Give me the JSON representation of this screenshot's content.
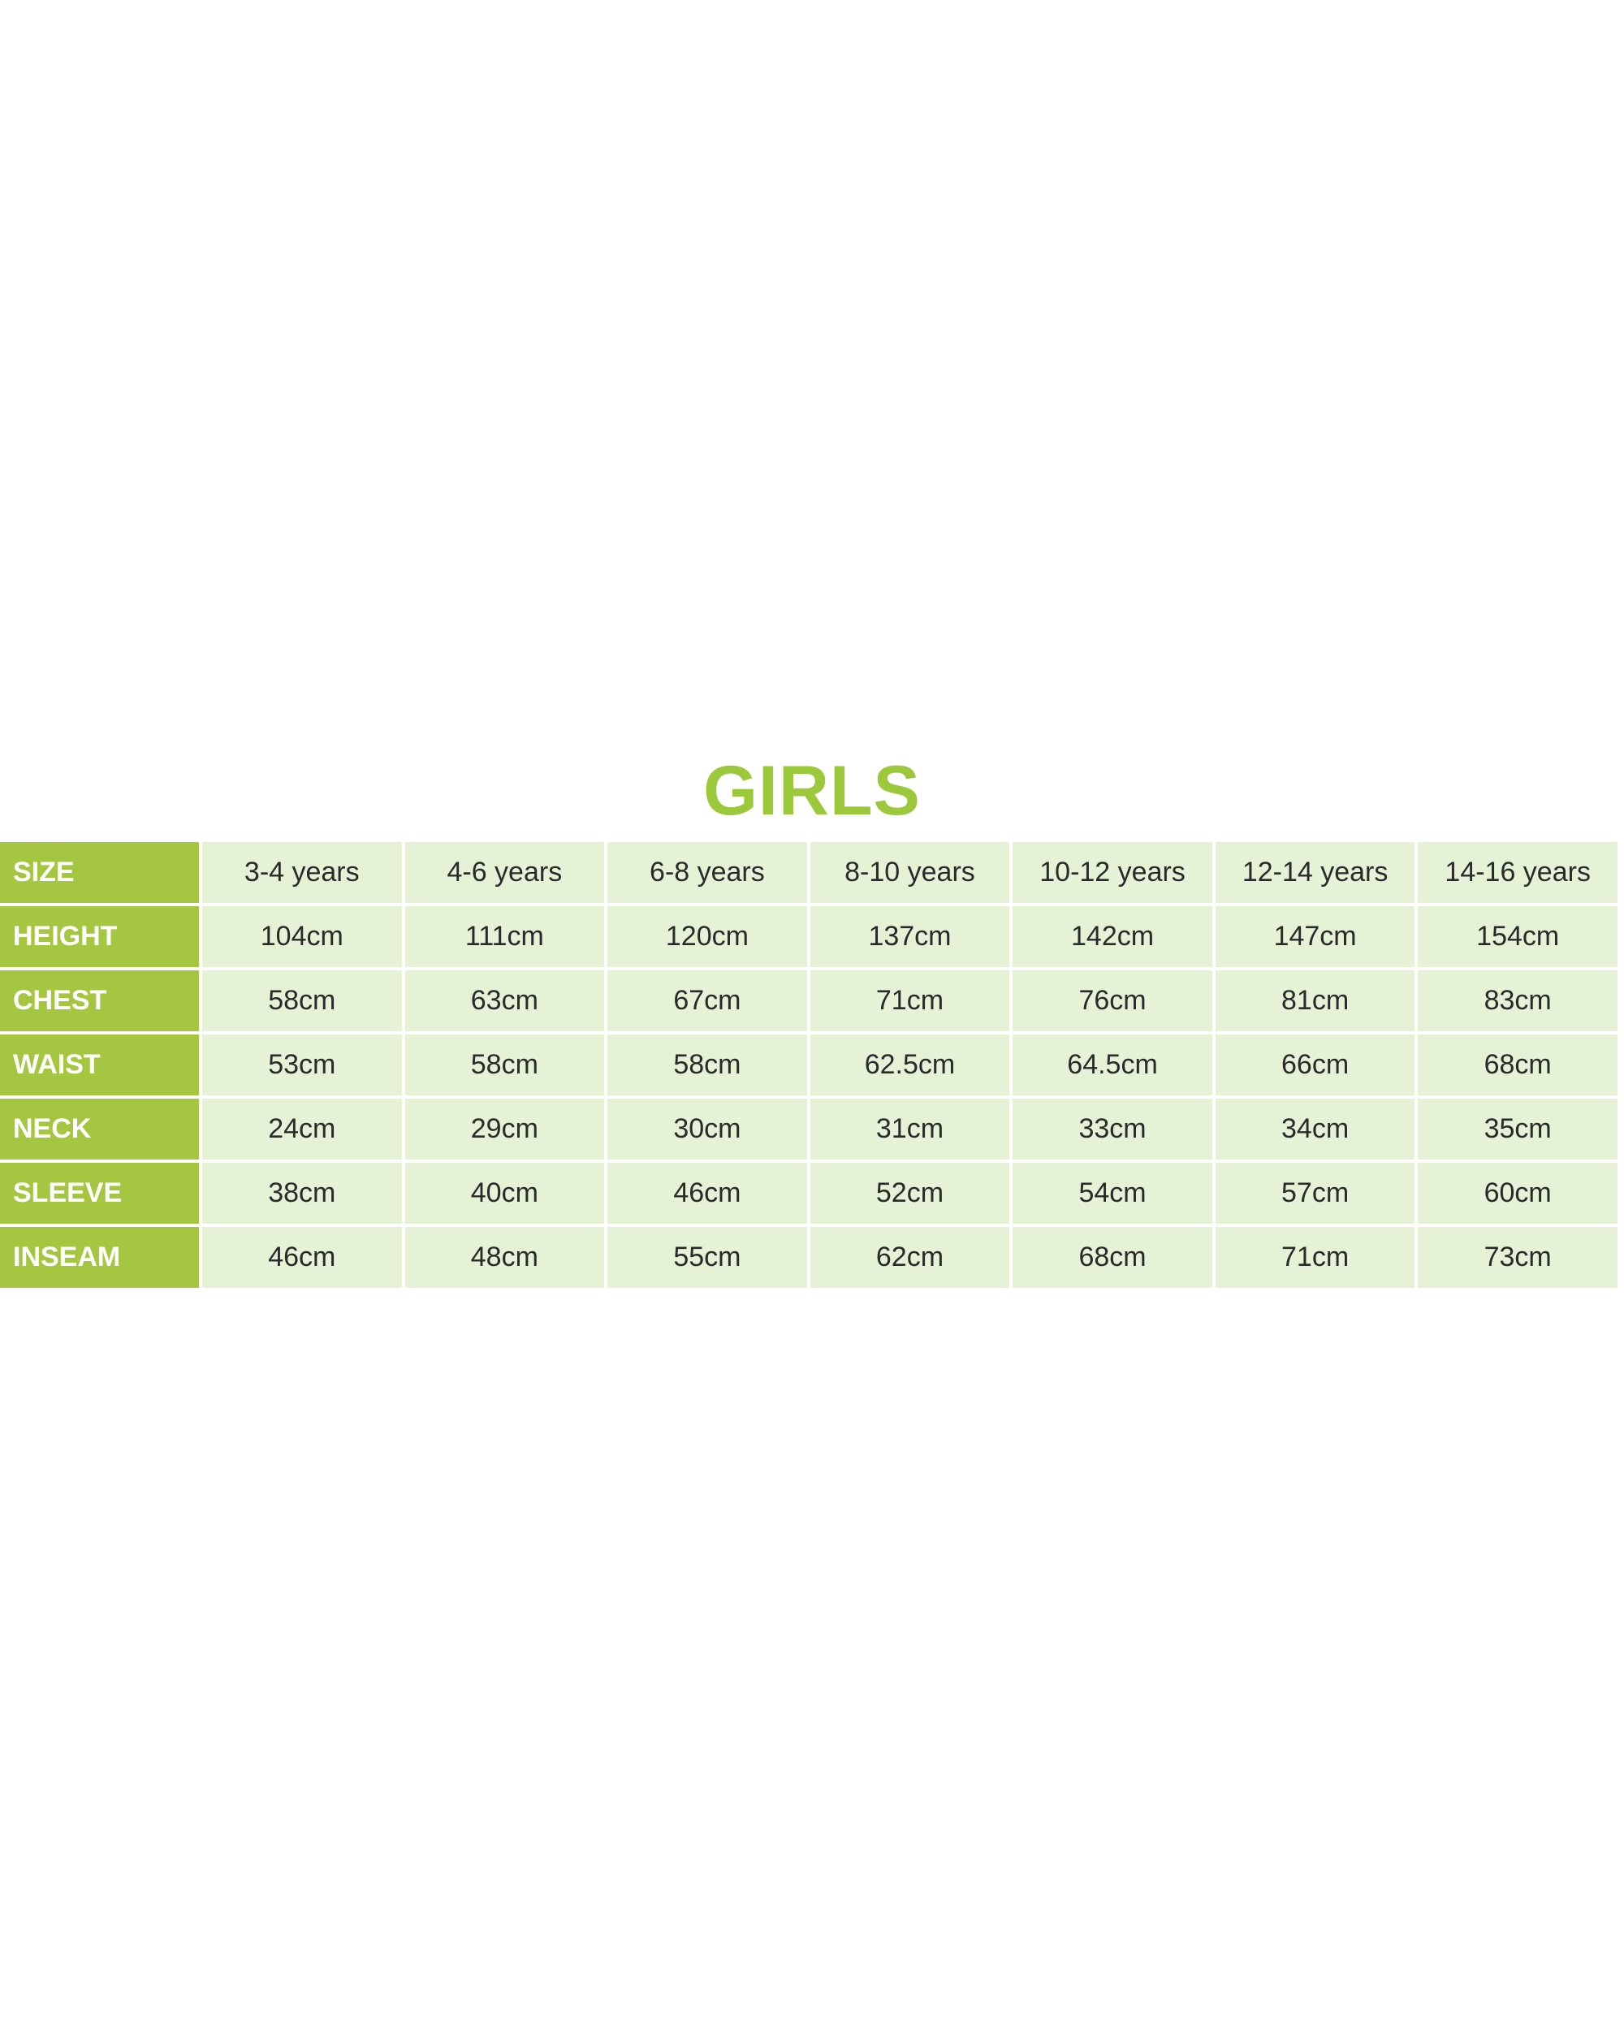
{
  "title": "GIRLS",
  "colors": {
    "title": "#9cc83c",
    "label_bg": "#a4c640",
    "cell_bg": "#e6f2d6"
  },
  "table": {
    "rows": [
      {
        "label": "SIZE",
        "values": [
          "3-4 years",
          "4-6 years",
          "6-8 years",
          "8-10 years",
          "10-12 years",
          "12-14 years",
          "14-16 years"
        ]
      },
      {
        "label": "HEIGHT",
        "values": [
          "104cm",
          "111cm",
          "120cm",
          "137cm",
          "142cm",
          "147cm",
          "154cm"
        ]
      },
      {
        "label": "CHEST",
        "values": [
          "58cm",
          "63cm",
          "67cm",
          "71cm",
          "76cm",
          "81cm",
          "83cm"
        ]
      },
      {
        "label": "WAIST",
        "values": [
          "53cm",
          "58cm",
          "58cm",
          "62.5cm",
          "64.5cm",
          "66cm",
          "68cm"
        ]
      },
      {
        "label": "NECK",
        "values": [
          "24cm",
          "29cm",
          "30cm",
          "31cm",
          "33cm",
          "34cm",
          "35cm"
        ]
      },
      {
        "label": "SLEEVE",
        "values": [
          "38cm",
          "40cm",
          "46cm",
          "52cm",
          "54cm",
          "57cm",
          "60cm"
        ]
      },
      {
        "label": "INSEAM",
        "values": [
          "46cm",
          "48cm",
          "55cm",
          "62cm",
          "68cm",
          "71cm",
          "73cm"
        ]
      }
    ]
  }
}
